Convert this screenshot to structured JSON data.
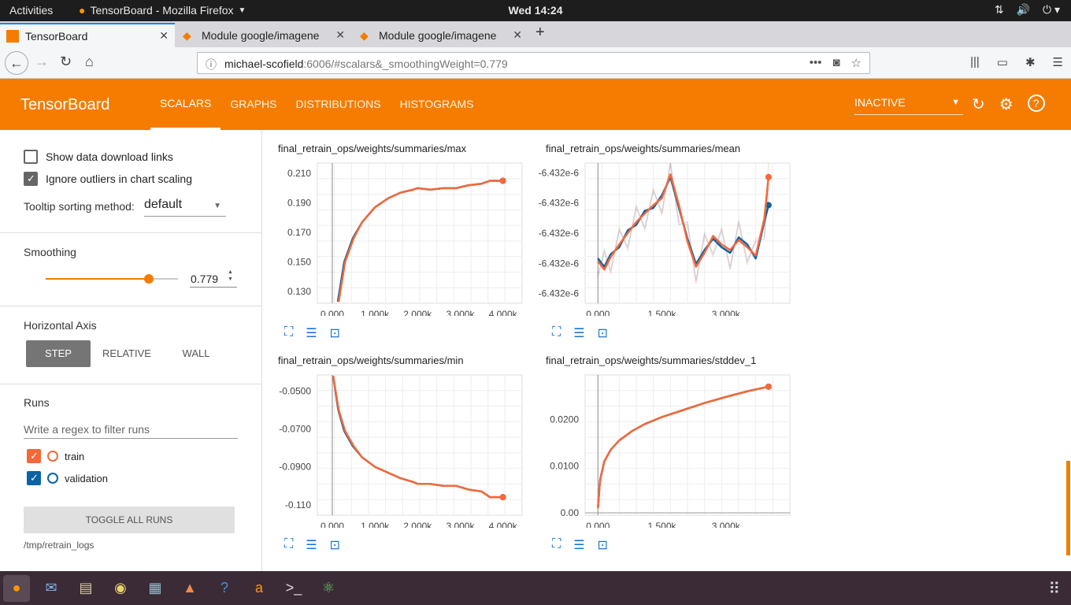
{
  "system": {
    "activities": "Activities",
    "app_name": "TensorBoard - Mozilla Firefox",
    "clock": "Wed 14:24"
  },
  "browser": {
    "tabs": [
      {
        "label": "TensorBoard",
        "active": true
      },
      {
        "label": "Module google/imagene",
        "active": false
      },
      {
        "label": "Module google/imagene",
        "active": false
      }
    ],
    "url_host": "michael-scofield",
    "url_rest": ":6006/#scalars&_smoothingWeight=0.779"
  },
  "header": {
    "brand": "TensorBoard",
    "tabs": [
      "SCALARS",
      "GRAPHS",
      "DISTRIBUTIONS",
      "HISTOGRAMS"
    ],
    "active_tab": "SCALARS",
    "status": "INACTIVE"
  },
  "sidebar": {
    "show_download": "Show data download links",
    "show_download_checked": false,
    "ignore_outliers": "Ignore outliers in chart scaling",
    "ignore_outliers_checked": true,
    "tooltip_label": "Tooltip sorting method:",
    "tooltip_value": "default",
    "smoothing_label": "Smoothing",
    "smoothing_value": "0.779",
    "smoothing_fraction": 0.779,
    "haxis_label": "Horizontal Axis",
    "haxis_options": [
      "STEP",
      "RELATIVE",
      "WALL"
    ],
    "haxis_selected": "STEP",
    "runs_label": "Runs",
    "regex_placeholder": "Write a regex to filter runs",
    "runs": [
      {
        "name": "train",
        "checked": true,
        "color": "#f4683a"
      },
      {
        "name": "validation",
        "checked": true,
        "color": "#0b62a4"
      }
    ],
    "toggle_all": "TOGGLE ALL RUNS",
    "logdir": "/tmp/retrain_logs"
  },
  "chart_data": [
    {
      "type": "line",
      "title": "final_retrain_ops/weights/summaries/max",
      "xticks": [
        "0.000",
        "1.000k",
        "2.000k",
        "3.000k",
        "4.000k"
      ],
      "yticks": [
        "0.210",
        "0.190",
        "0.170",
        "0.150",
        "0.130"
      ],
      "xlim": [
        -350,
        4450
      ],
      "ylim": [
        0.122,
        0.217
      ],
      "series": [
        {
          "name": "train",
          "color": "#f4683a",
          "x": [
            150,
            300,
            500,
            700,
            1000,
            1300,
            1600,
            1900,
            2000,
            2300,
            2600,
            2900,
            3200,
            3500,
            3700,
            4000
          ],
          "y": [
            0.123,
            0.15,
            0.166,
            0.177,
            0.187,
            0.193,
            0.197,
            0.199,
            0.2,
            0.199,
            0.2,
            0.2,
            0.202,
            0.203,
            0.205,
            0.205
          ]
        },
        {
          "name": "validation",
          "color": "#0b62a4",
          "x": [
            130,
            280,
            480,
            700,
            1000,
            1300,
            1600,
            1900,
            2000,
            2300,
            2600,
            2900,
            3200,
            3500,
            3700,
            4000
          ],
          "y": [
            0.123,
            0.15,
            0.166,
            0.177,
            0.187,
            0.193,
            0.197,
            0.199,
            0.2,
            0.199,
            0.2,
            0.2,
            0.202,
            0.203,
            0.205,
            0.205
          ]
        }
      ]
    },
    {
      "type": "line",
      "title": "final_retrain_ops/weights/summaries/mean",
      "xticks": [
        "0.000",
        "1.500k",
        "3.000k"
      ],
      "yticks": [
        "-6.432e-6",
        "-6.432e-6",
        "-6.432e-6",
        "-6.432e-6",
        "-6.432e-6"
      ],
      "xlim": [
        -300,
        4500
      ],
      "ylim": [
        0,
        1
      ],
      "series": [
        {
          "name": "train",
          "color": "#f4683a",
          "x": [
            0,
            150,
            300,
            500,
            700,
            900,
            1100,
            1300,
            1500,
            1700,
            1900,
            2100,
            2300,
            2500,
            2700,
            2900,
            3100,
            3300,
            3500,
            3700,
            3900,
            4000
          ],
          "y": [
            0.3,
            0.24,
            0.33,
            0.42,
            0.5,
            0.58,
            0.64,
            0.7,
            0.75,
            0.92,
            0.7,
            0.44,
            0.26,
            0.36,
            0.48,
            0.42,
            0.38,
            0.45,
            0.4,
            0.34,
            0.6,
            0.9
          ]
        },
        {
          "name": "validation",
          "color": "#0b62a4",
          "x": [
            0,
            150,
            300,
            500,
            700,
            900,
            1100,
            1300,
            1500,
            1700,
            1900,
            2100,
            2300,
            2500,
            2700,
            2900,
            3100,
            3300,
            3500,
            3700,
            3900,
            4000
          ],
          "y": [
            0.32,
            0.26,
            0.35,
            0.4,
            0.52,
            0.56,
            0.66,
            0.68,
            0.77,
            0.9,
            0.68,
            0.46,
            0.28,
            0.38,
            0.46,
            0.4,
            0.36,
            0.47,
            0.42,
            0.32,
            0.58,
            0.7
          ]
        }
      ]
    },
    {
      "type": "line",
      "title": "final_retrain_ops/weights/summaries/min",
      "xticks": [
        "0.000",
        "1.000k",
        "2.000k",
        "3.000k",
        "4.000k"
      ],
      "yticks": [
        "-0.0500",
        "-0.0700",
        "-0.0900",
        "-0.110"
      ],
      "xlim": [
        -350,
        4450
      ],
      "ylim": [
        -0.1155,
        -0.0415
      ],
      "series": [
        {
          "name": "train",
          "color": "#f4683a",
          "x": [
            20,
            150,
            300,
            500,
            700,
            1000,
            1300,
            1600,
            1900,
            2000,
            2300,
            2600,
            2900,
            3200,
            3500,
            3700,
            4000
          ],
          "y": [
            -0.042,
            -0.06,
            -0.071,
            -0.079,
            -0.085,
            -0.09,
            -0.093,
            -0.096,
            -0.098,
            -0.099,
            -0.099,
            -0.1,
            -0.1,
            -0.102,
            -0.103,
            -0.106,
            -0.106
          ]
        },
        {
          "name": "validation",
          "color": "#0b62a4",
          "x": [
            20,
            140,
            280,
            480,
            700,
            1000,
            1300,
            1600,
            1900,
            2000,
            2300,
            2600,
            2900,
            3200,
            3500,
            3700,
            4000
          ],
          "y": [
            -0.042,
            -0.06,
            -0.071,
            -0.079,
            -0.085,
            -0.09,
            -0.093,
            -0.096,
            -0.098,
            -0.099,
            -0.099,
            -0.1,
            -0.1,
            -0.102,
            -0.103,
            -0.106,
            -0.106
          ]
        }
      ]
    },
    {
      "type": "line",
      "title": "final_retrain_ops/weights/summaries/stddev_1",
      "xticks": [
        "0.000",
        "1.500k",
        "3.000k"
      ],
      "yticks": [
        "0.0200",
        "0.0100",
        "0.00"
      ],
      "xlim": [
        -300,
        4500
      ],
      "ylim": [
        -0.0005,
        0.0295
      ],
      "series": [
        {
          "name": "train",
          "color": "#f4683a",
          "x": [
            0,
            50,
            150,
            300,
            500,
            800,
            1100,
            1500,
            2000,
            2500,
            3000,
            3500,
            4000
          ],
          "y": [
            0.001,
            0.007,
            0.011,
            0.0135,
            0.0155,
            0.0175,
            0.019,
            0.0205,
            0.022,
            0.0235,
            0.0248,
            0.026,
            0.027
          ]
        },
        {
          "name": "validation",
          "color": "#0b62a4",
          "x": [
            0,
            50,
            150,
            300,
            500,
            800,
            1100,
            1500,
            2000,
            2500,
            3000,
            3500,
            4000
          ],
          "y": [
            0.001,
            0.007,
            0.011,
            0.0135,
            0.0155,
            0.0175,
            0.019,
            0.0205,
            0.022,
            0.0235,
            0.0248,
            0.026,
            0.027
          ]
        }
      ]
    }
  ]
}
